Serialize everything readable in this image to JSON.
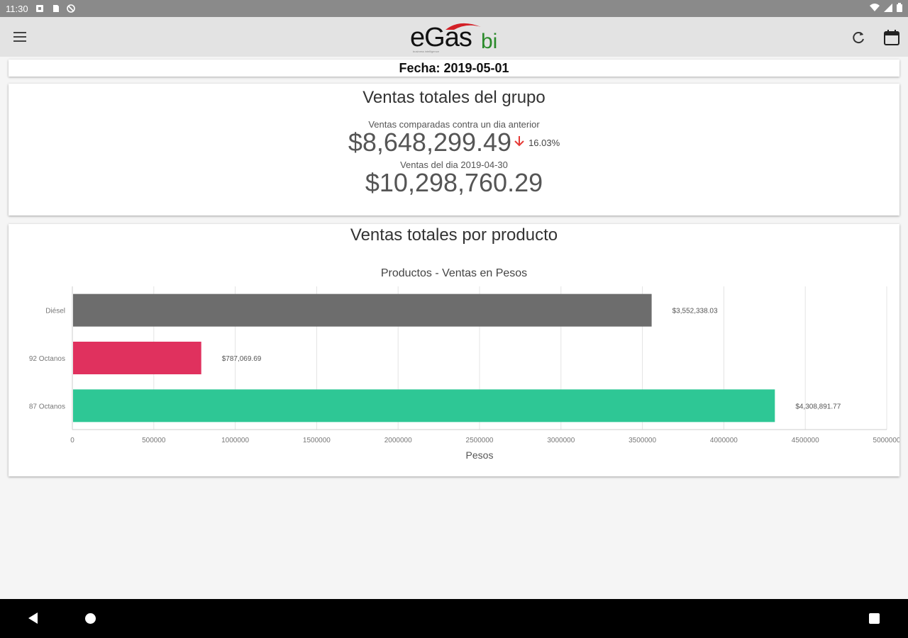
{
  "status_bar": {
    "time": "11:30"
  },
  "app_bar": {
    "logo_main": "eGas",
    "logo_suffix": "bi",
    "logo_tagline": "business intelligence"
  },
  "date_card": {
    "label": "Fecha: 2019-05-01"
  },
  "group_sales": {
    "title": "Ventas totales del grupo",
    "comparison_label": "Ventas comparadas contra un dia anterior",
    "current_amount": "$8,648,299.49",
    "change_pct": "16.03%",
    "trend": "down",
    "previous_label": "Ventas del dia 2019-04-30",
    "previous_amount": "$10,298,760.29"
  },
  "product_sales": {
    "title": "Ventas totales por producto"
  },
  "colors": {
    "diesel": "#6d6d6d",
    "octanos92": "#e0315e",
    "octanos87": "#2ec795",
    "down_arrow": "#e53935"
  },
  "chart_data": {
    "type": "bar",
    "orientation": "horizontal",
    "title": "Productos - Ventas en Pesos",
    "xlabel": "Pesos",
    "ylabel": "",
    "xlim": [
      0,
      5000000
    ],
    "xticks": [
      "0",
      "500000",
      "1000000",
      "1500000",
      "2000000",
      "2500000",
      "3000000",
      "3500000",
      "4000000",
      "4500000",
      "5000000"
    ],
    "categories": [
      "Diésel",
      "92 Octanos",
      "87 Octanos"
    ],
    "values": [
      3552338.03,
      787069.69,
      4308891.77
    ],
    "data_labels": [
      "$3,552,338.03",
      "$787,069.69",
      "$4,308,891.77"
    ],
    "grid": true
  }
}
